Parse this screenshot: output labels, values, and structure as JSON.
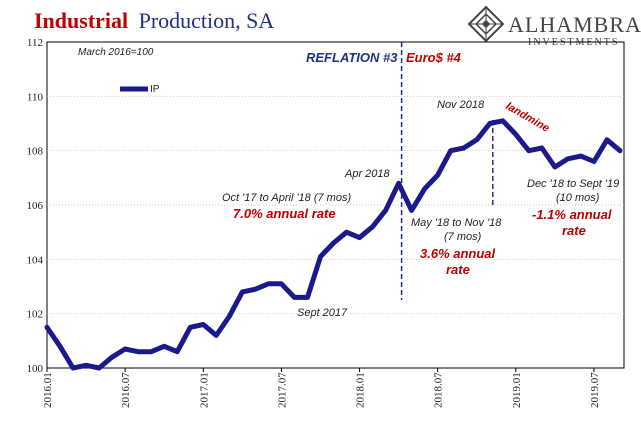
{
  "title": {
    "part1": "Industrial",
    "part2": "Production, SA",
    "color1": "#c00000",
    "color2": "#1f2f8a"
  },
  "logo": {
    "name": "ALHAMBRA",
    "sub": "INVESTMENTS",
    "icon": "diamond-pattern-icon"
  },
  "base_note": "March 2016=100",
  "legend_label": "IP",
  "phase_labels": {
    "reflation": "REFLATION #3",
    "euro": "Euro$ #4",
    "reflation_color": "#1f2f8a",
    "euro_color": "#c00000"
  },
  "annotations": {
    "apr2018": "Apr 2018",
    "nov2018": "Nov 2018",
    "sept2017": "Sept 2017",
    "landmine": "landmine",
    "oct_apr": "Oct '17 to April '18 (7 mos)",
    "oct_apr_rate": "7.0% annual rate",
    "may_nov_1": "May '18 to Nov '18",
    "may_nov_2": "(7 mos)",
    "may_nov_rate_1": "3.6% annual",
    "may_nov_rate_2": "rate",
    "dec_sep_1": "Dec '18 to Sept '19",
    "dec_sep_2": "(10 mos)",
    "dec_sep_rate_1": "-1.1% annual",
    "dec_sep_rate_2": "rate"
  },
  "chart_data": {
    "type": "line",
    "title": "Industrial Production, SA",
    "ylim": [
      100,
      112
    ],
    "yticks": [
      100,
      102,
      104,
      106,
      108,
      110,
      112
    ],
    "xticks": [
      "2016.01",
      "2016.07",
      "2017.01",
      "2017.07",
      "2018.01",
      "2018.07",
      "2019.01",
      "2019.07"
    ],
    "x": [
      "2016-01",
      "2016-02",
      "2016-03",
      "2016-04",
      "2016-05",
      "2016-06",
      "2016-07",
      "2016-08",
      "2016-09",
      "2016-10",
      "2016-11",
      "2016-12",
      "2017-01",
      "2017-02",
      "2017-03",
      "2017-04",
      "2017-05",
      "2017-06",
      "2017-07",
      "2017-08",
      "2017-09",
      "2017-10",
      "2017-11",
      "2017-12",
      "2018-01",
      "2018-02",
      "2018-03",
      "2018-04",
      "2018-05",
      "2018-06",
      "2018-07",
      "2018-08",
      "2018-09",
      "2018-10",
      "2018-11",
      "2018-12",
      "2019-01",
      "2019-02",
      "2019-03",
      "2019-04",
      "2019-05",
      "2019-06",
      "2019-07",
      "2019-08",
      "2019-09"
    ],
    "series": [
      {
        "name": "IP",
        "color": "#1a1a8c",
        "values": [
          101.5,
          100.8,
          100.0,
          100.1,
          100.0,
          100.4,
          100.7,
          100.6,
          100.6,
          100.8,
          100.6,
          101.5,
          101.6,
          101.2,
          101.9,
          102.8,
          102.9,
          103.1,
          103.1,
          102.6,
          102.6,
          104.1,
          104.6,
          105.0,
          104.8,
          105.2,
          105.8,
          106.8,
          105.8,
          106.6,
          107.1,
          108.0,
          108.1,
          108.4,
          109.0,
          109.1,
          108.6,
          108.0,
          108.1,
          107.4,
          107.7,
          107.8,
          107.6,
          108.4,
          108.0
        ]
      }
    ],
    "vlines": [
      "2018-04",
      "2018-11"
    ],
    "legend": "top-left"
  }
}
